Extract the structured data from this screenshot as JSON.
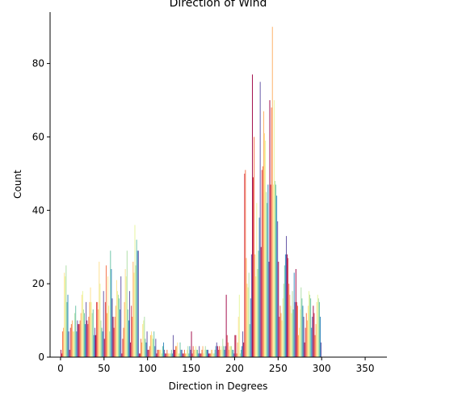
{
  "chart_data": {
    "type": "bar",
    "title": "Direction of Wind",
    "xlabel": "Direction in Degrees",
    "ylabel": "Count",
    "xlim": [
      -12,
      375
    ],
    "ylim": [
      0,
      94
    ],
    "xticks": [
      0,
      50,
      100,
      150,
      200,
      250,
      300,
      350
    ],
    "yticks": [
      0,
      20,
      40,
      60,
      80
    ],
    "grid": false,
    "legend": "none",
    "palette": [
      "#9e0142",
      "#d53e4f",
      "#f46d43",
      "#fdae61",
      "#fee08b",
      "#e6f598",
      "#abdda4",
      "#66c2a5",
      "#3288bd",
      "#5e4fa2"
    ],
    "bar_group_width": 10,
    "series": [
      {
        "x": 0,
        "values": [
          2,
          1,
          7,
          8,
          23,
          22,
          25,
          15,
          17,
          7
        ]
      },
      {
        "x": 10,
        "values": [
          2,
          8,
          9,
          10,
          7,
          7,
          12,
          14,
          7,
          10
        ]
      },
      {
        "x": 20,
        "values": [
          9,
          9,
          10,
          12,
          17,
          18,
          13,
          12,
          9,
          15
        ]
      },
      {
        "x": 30,
        "values": [
          10,
          9,
          11,
          15,
          19,
          15,
          12,
          13,
          6,
          8
        ]
      },
      {
        "x": 40,
        "values": [
          6,
          15,
          15,
          13,
          26,
          20,
          10,
          8,
          7,
          18
        ]
      },
      {
        "x": 50,
        "values": [
          5,
          15,
          25,
          12,
          22,
          14,
          7,
          29,
          24,
          16
        ]
      },
      {
        "x": 60,
        "values": [
          11,
          8,
          11,
          14,
          21,
          18,
          17,
          16,
          13,
          22
        ]
      },
      {
        "x": 70,
        "values": [
          1,
          5,
          8,
          15,
          24,
          22,
          29,
          13,
          10,
          18
        ]
      },
      {
        "x": 80,
        "values": [
          4,
          14,
          11,
          26,
          23,
          36,
          25,
          32,
          29,
          29
        ]
      },
      {
        "x": 90,
        "values": [
          1,
          1,
          5,
          4,
          9,
          10,
          11,
          5,
          4,
          7
        ]
      },
      {
        "x": 100,
        "values": [
          2,
          2,
          3,
          6,
          7,
          6,
          5,
          7,
          3,
          5
        ]
      },
      {
        "x": 110,
        "values": [
          1,
          2,
          2,
          2,
          2,
          2,
          1,
          3,
          4,
          2
        ]
      },
      {
        "x": 120,
        "values": [
          1,
          1,
          2,
          1,
          1,
          1,
          1,
          2,
          1,
          6
        ]
      },
      {
        "x": 130,
        "values": [
          2,
          2,
          3,
          3,
          4,
          1,
          1,
          4,
          2,
          2
        ]
      },
      {
        "x": 140,
        "values": [
          1,
          1,
          2,
          1,
          1,
          2,
          3,
          1,
          3,
          2
        ]
      },
      {
        "x": 150,
        "values": [
          7,
          1,
          3,
          2,
          2,
          3,
          2,
          2,
          1,
          3
        ]
      },
      {
        "x": 160,
        "values": [
          1,
          1,
          2,
          3,
          1,
          2,
          3,
          2,
          2,
          2
        ]
      },
      {
        "x": 170,
        "values": [
          1,
          1,
          1,
          2,
          2,
          1,
          1,
          2,
          3,
          4
        ]
      },
      {
        "x": 180,
        "values": [
          3,
          2,
          3,
          2,
          3,
          2,
          5,
          3,
          2,
          3
        ]
      },
      {
        "x": 190,
        "values": [
          17,
          6,
          4,
          2,
          3,
          3,
          3,
          2,
          2,
          1
        ]
      },
      {
        "x": 200,
        "values": [
          6,
          6,
          1,
          4,
          11,
          17,
          1,
          2,
          3,
          7
        ]
      },
      {
        "x": 210,
        "values": [
          4,
          50,
          51,
          27,
          20,
          19,
          23,
          9,
          16,
          28
        ]
      },
      {
        "x": 220,
        "values": [
          77,
          49,
          60,
          28,
          22,
          42,
          24,
          29,
          38,
          75
        ]
      },
      {
        "x": 230,
        "values": [
          30,
          51,
          52,
          67,
          61,
          59,
          45,
          42,
          47,
          26
        ]
      },
      {
        "x": 240,
        "values": [
          70,
          47,
          68,
          90,
          47,
          70,
          48,
          47,
          44,
          37
        ]
      },
      {
        "x": 250,
        "values": [
          26,
          11,
          14,
          12,
          10,
          16,
          20,
          25,
          28,
          33
        ]
      },
      {
        "x": 260,
        "values": [
          28,
          27,
          20,
          17,
          14,
          12,
          18,
          13,
          23,
          15
        ]
      },
      {
        "x": 270,
        "values": [
          24,
          15,
          14,
          6,
          8,
          13,
          19,
          16,
          14,
          11
        ]
      },
      {
        "x": 280,
        "values": [
          4,
          8,
          12,
          10,
          14,
          18,
          17,
          16,
          8,
          11
        ]
      },
      {
        "x": 290,
        "values": [
          14,
          12,
          6,
          9,
          15,
          17,
          16,
          15,
          11,
          4
        ]
      }
    ]
  }
}
